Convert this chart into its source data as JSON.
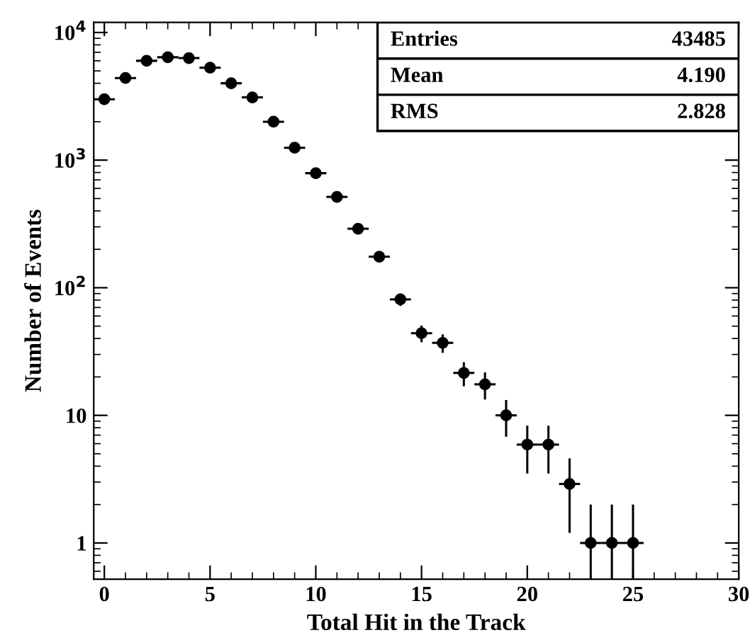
{
  "chart_data": {
    "type": "scatter",
    "xlabel": "Total Hit in the Track",
    "ylabel": "Number of Events",
    "x": [
      0,
      1,
      2,
      3,
      4,
      5,
      6,
      7,
      8,
      9,
      10,
      11,
      12,
      13,
      14,
      15,
      16,
      17,
      18,
      19,
      20,
      21,
      22,
      23,
      24,
      25
    ],
    "series": [
      {
        "color": "#000000",
        "values": [
          3000,
          4400,
          6000,
          6400,
          6300,
          5300,
          4000,
          3100,
          2000,
          1250,
          790,
          515,
          290,
          175,
          81,
          44,
          37,
          21.5,
          17.5,
          10,
          5.9,
          5.9,
          2.9,
          1,
          1,
          1
        ],
        "errors": [
          null,
          null,
          null,
          null,
          null,
          null,
          null,
          null,
          null,
          null,
          null,
          null,
          null,
          null,
          9,
          6.6,
          6.1,
          4.6,
          4.2,
          3.2,
          2.4,
          2.4,
          1.7,
          [
            0.52,
            2
          ],
          [
            0.52,
            2
          ],
          [
            0.52,
            2
          ]
        ],
        "xerrors": [
          0.5,
          0.5,
          0.5,
          0.5,
          0.5,
          0.5,
          0.5,
          0.5,
          0.5,
          0.5,
          0.5,
          0.5,
          0.5,
          0.5,
          0.5,
          0.5,
          0.5,
          0.5,
          0.5,
          0.5,
          0.5,
          0.5,
          0.5,
          0.5,
          0.5,
          0.5
        ]
      }
    ],
    "marker": "circle",
    "log": "y",
    "xlim": [
      -0.5,
      30
    ],
    "ylim": [
      0.52,
      12000
    ],
    "xticks": [
      0,
      5,
      10,
      15,
      20,
      25,
      30
    ],
    "yticks": [
      1,
      10,
      {
        "value": 100,
        "label": "10$^{2}$"
      },
      {
        "value": 1000,
        "label": "10$^{3}$"
      },
      {
        "value": 10000,
        "label": "10$^{4}$"
      }
    ],
    "annotations": [
      "Entries",
      "43485",
      "Mean",
      "4.190",
      "RMS",
      "2.828"
    ],
    "grid": false,
    "legend": false
  }
}
